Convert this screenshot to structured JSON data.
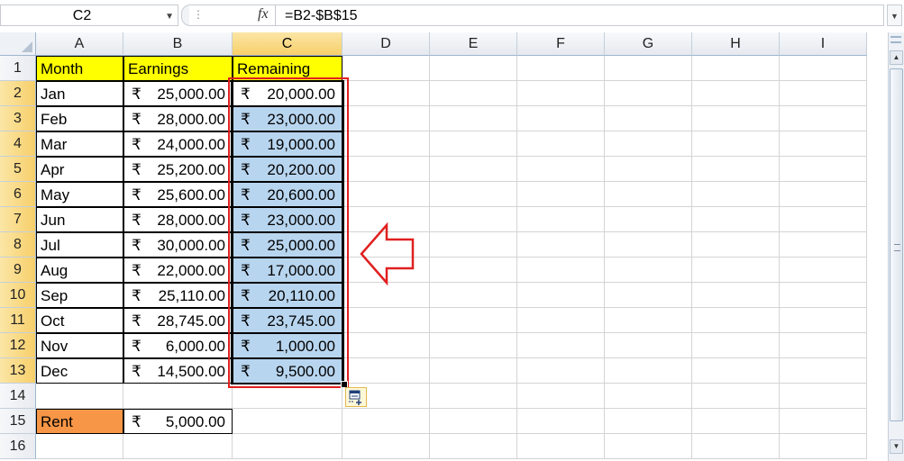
{
  "formula_bar": {
    "name_box": "C2",
    "fx_label": "fx",
    "formula": "=B2-$B$15"
  },
  "columns": [
    "A",
    "B",
    "C",
    "D",
    "E",
    "F",
    "G",
    "H",
    "I"
  ],
  "selected_column": "C",
  "rows": [
    "1",
    "2",
    "3",
    "4",
    "5",
    "6",
    "7",
    "8",
    "9",
    "10",
    "11",
    "12",
    "13",
    "14",
    "15",
    "16"
  ],
  "currency_symbol": "₹",
  "headers": {
    "month": "Month",
    "earnings": "Earnings",
    "remaining": "Remaining"
  },
  "data_rows": [
    {
      "month": "Jan",
      "earnings": "25,000.00",
      "remaining": "20,000.00"
    },
    {
      "month": "Feb",
      "earnings": "28,000.00",
      "remaining": "23,000.00"
    },
    {
      "month": "Mar",
      "earnings": "24,000.00",
      "remaining": "19,000.00"
    },
    {
      "month": "Apr",
      "earnings": "25,200.00",
      "remaining": "20,200.00"
    },
    {
      "month": "May",
      "earnings": "25,600.00",
      "remaining": "20,600.00"
    },
    {
      "month": "Jun",
      "earnings": "28,000.00",
      "remaining": "23,000.00"
    },
    {
      "month": "Jul",
      "earnings": "30,000.00",
      "remaining": "25,000.00"
    },
    {
      "month": "Aug",
      "earnings": "22,000.00",
      "remaining": "17,000.00"
    },
    {
      "month": "Sep",
      "earnings": "25,110.00",
      "remaining": "20,110.00"
    },
    {
      "month": "Oct",
      "earnings": "28,745.00",
      "remaining": "23,745.00"
    },
    {
      "month": "Nov",
      "earnings": "6,000.00",
      "remaining": "1,000.00"
    },
    {
      "month": "Dec",
      "earnings": "14,500.00",
      "remaining": "9,500.00"
    }
  ],
  "rent": {
    "label": "Rent",
    "value": "5,000.00"
  },
  "colors": {
    "header_fill": "#ffff00",
    "rent_fill": "#f79646",
    "selection_fill": "#b8d5ef",
    "annotation": "#e02020"
  },
  "icons": {
    "annotation_arrow": "left-arrow-outline",
    "paste_options": "paste-options-icon"
  }
}
